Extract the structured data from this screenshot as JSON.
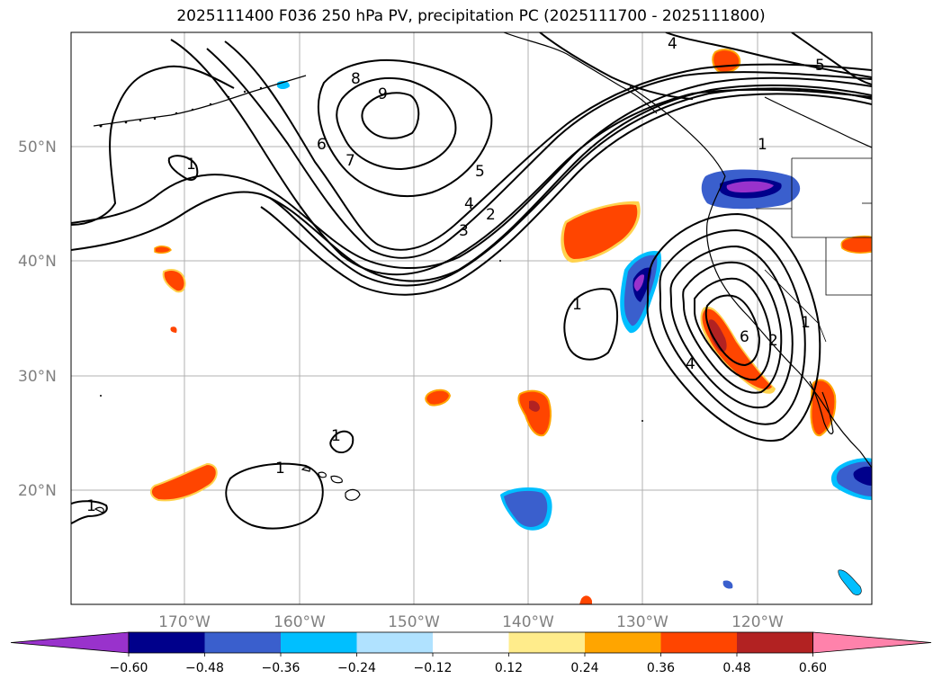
{
  "title": "2025111400 F036 250 hPa PV, precipitation PC (2025111700 - 2025111800)",
  "map": {
    "lat_labels": [
      "50°N",
      "40°N",
      "30°N",
      "20°N"
    ],
    "lon_labels": [
      "170°W",
      "160°W",
      "150°W",
      "140°W",
      "130°W",
      "120°W"
    ],
    "contour_labels": [
      "9",
      "8",
      "7",
      "6",
      "5",
      "4",
      "3",
      "2",
      "1",
      "1",
      "1",
      "1",
      "1",
      "1",
      "2",
      "4",
      "6",
      "1",
      "4",
      "5"
    ]
  },
  "colorbar": {
    "ticks": [
      "−0.60",
      "−0.48",
      "−0.36",
      "−0.24",
      "−0.12",
      "0.12",
      "0.24",
      "0.36",
      "0.48",
      "0.60"
    ],
    "colors": [
      "#9932cc",
      "#00008b",
      "#3a5fcd",
      "#00bfff",
      "#b0e2ff",
      "#ffffff",
      "#ffec8b",
      "#ffa500",
      "#ff4500",
      "#b22222",
      "#ff82ab"
    ]
  }
}
